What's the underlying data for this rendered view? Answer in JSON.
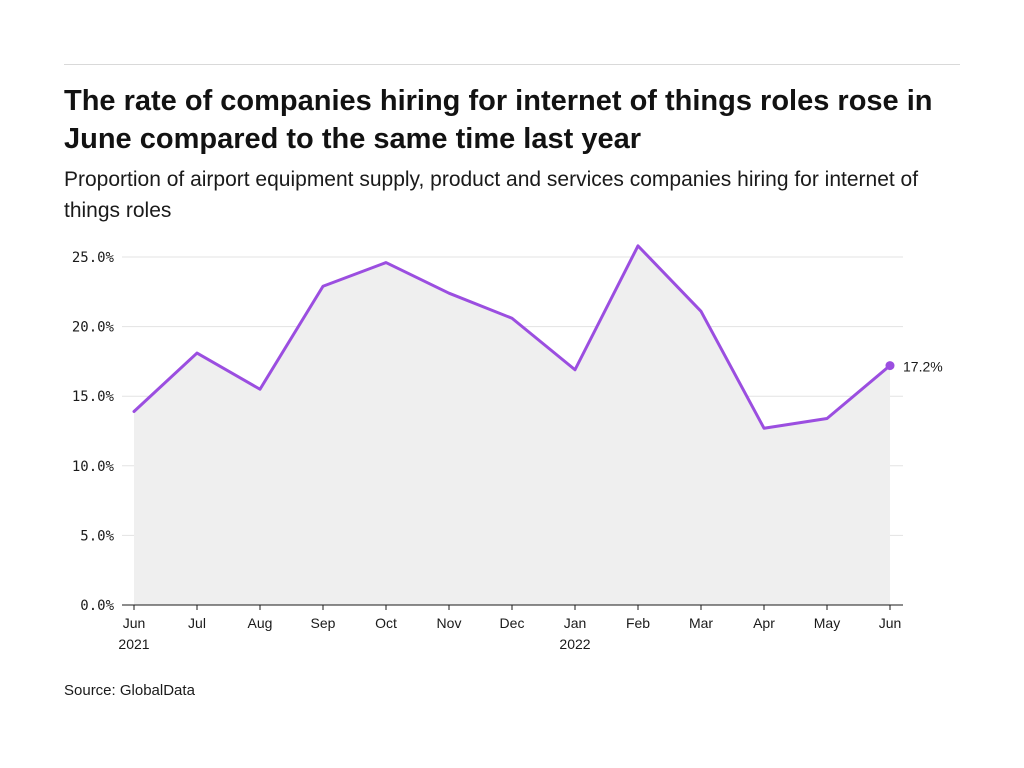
{
  "title": "The rate of companies hiring for internet of things roles rose in June compared to the same time last year",
  "subtitle": "Proportion of airport equipment supply, product and services companies hiring for internet of things roles",
  "source": "Source: GlobalData",
  "colors": {
    "line": "#9b4ee0",
    "area": "#efefef",
    "grid": "#e3e3e3",
    "axis": "#1a1a1a"
  },
  "chart_data": {
    "type": "area",
    "x": [
      "Jun 2021",
      "Jul 2021",
      "Aug 2021",
      "Sep 2021",
      "Oct 2021",
      "Nov 2021",
      "Dec 2021",
      "Jan 2022",
      "Feb 2022",
      "Mar 2022",
      "Apr 2022",
      "May 2022",
      "Jun 2022"
    ],
    "x_tick_labels": [
      [
        "Jun",
        "2021"
      ],
      [
        "Jul"
      ],
      [
        "Aug"
      ],
      [
        "Sep"
      ],
      [
        "Oct"
      ],
      [
        "Nov"
      ],
      [
        "Dec"
      ],
      [
        "Jan",
        "2022"
      ],
      [
        "Feb"
      ],
      [
        "Mar"
      ],
      [
        "Apr"
      ],
      [
        "May"
      ],
      [
        "Jun"
      ]
    ],
    "series": [
      {
        "values": [
          13.9,
          18.1,
          15.5,
          22.9,
          24.6,
          22.4,
          20.6,
          16.9,
          25.8,
          21.1,
          12.7,
          13.4,
          17.2
        ]
      }
    ],
    "ylim": [
      0,
      25
    ],
    "y_ticks": [
      0,
      5,
      10,
      15,
      20,
      25
    ],
    "y_tick_labels": [
      "0.0%",
      "5.0%",
      "10.0%",
      "15.0%",
      "20.0%",
      "25.0%"
    ],
    "end_label": "17.2%",
    "grid": true,
    "xlabel": "",
    "ylabel": ""
  }
}
